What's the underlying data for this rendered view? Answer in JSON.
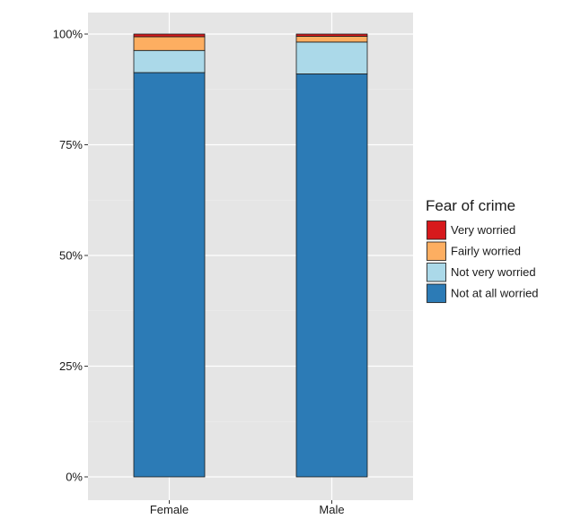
{
  "chart_data": {
    "type": "bar",
    "stacked": true,
    "percent_axis": true,
    "categories": [
      "Female",
      "Male"
    ],
    "series": [
      {
        "name": "Not at all worried",
        "values": [
          91.3,
          91.0
        ],
        "color": "#2c7bb6"
      },
      {
        "name": "Not very worried",
        "values": [
          5.0,
          7.2
        ],
        "color": "#abd9e9"
      },
      {
        "name": "Fairly worried",
        "values": [
          3.1,
          1.3
        ],
        "color": "#fdae61"
      },
      {
        "name": "Very worried",
        "values": [
          0.6,
          0.5
        ],
        "color": "#d7191c"
      }
    ],
    "y_ticks": [
      "0%",
      "25%",
      "50%",
      "75%",
      "100%"
    ],
    "y_tick_values": [
      0,
      25,
      50,
      75,
      100
    ],
    "ylim": [
      0,
      100
    ],
    "legend": {
      "title": "Fear of crime",
      "placement": "right",
      "entries": [
        "Very worried",
        "Fairly worried",
        "Not very worried",
        "Not at all worried"
      ]
    },
    "grid": true,
    "panel_background": "#e5e5e5",
    "grid_color": "#ffffff"
  }
}
